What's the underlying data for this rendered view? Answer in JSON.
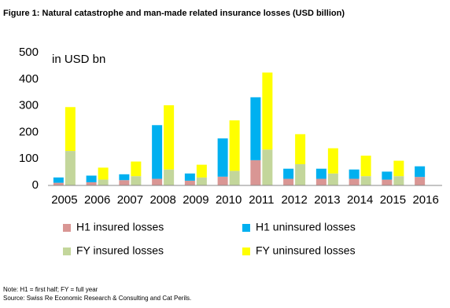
{
  "chart_data": {
    "type": "bar",
    "title": "Figure 1: Natural catastrophe and man-made related insurance losses (USD billion)",
    "annotation": "in USD bn",
    "categories": [
      "2005",
      "2006",
      "2007",
      "2008",
      "2009",
      "2010",
      "2011",
      "2012",
      "2013",
      "2014",
      "2015",
      "2016"
    ],
    "series": [
      {
        "name": "H1 insured losses",
        "color": "#d99694",
        "values": [
          10,
          12,
          20,
          25,
          18,
          33,
          95,
          25,
          25,
          25,
          22,
          32
        ]
      },
      {
        "name": "H1 uninsured losses",
        "color": "#00b0f0",
        "values": [
          20,
          25,
          22,
          202,
          27,
          144,
          237,
          38,
          38,
          35,
          30,
          40
        ]
      },
      {
        "name": "FY insured losses",
        "color": "#c3d69b",
        "values": [
          130,
          22,
          35,
          60,
          30,
          55,
          135,
          80,
          45,
          35,
          35,
          null
        ]
      },
      {
        "name": "FY uninsured losses",
        "color": "#ffff00",
        "values": [
          165,
          45,
          55,
          242,
          48,
          190,
          290,
          113,
          95,
          77,
          58,
          null
        ]
      }
    ],
    "ylim": [
      0,
      500
    ],
    "yticks": [
      0,
      100,
      200,
      300,
      400,
      500
    ],
    "grid": false,
    "notes": [
      "Note: H1 = first half; FY = full year",
      "Source: Swiss Re Economic Research & Consulting and Cat Perils."
    ]
  }
}
